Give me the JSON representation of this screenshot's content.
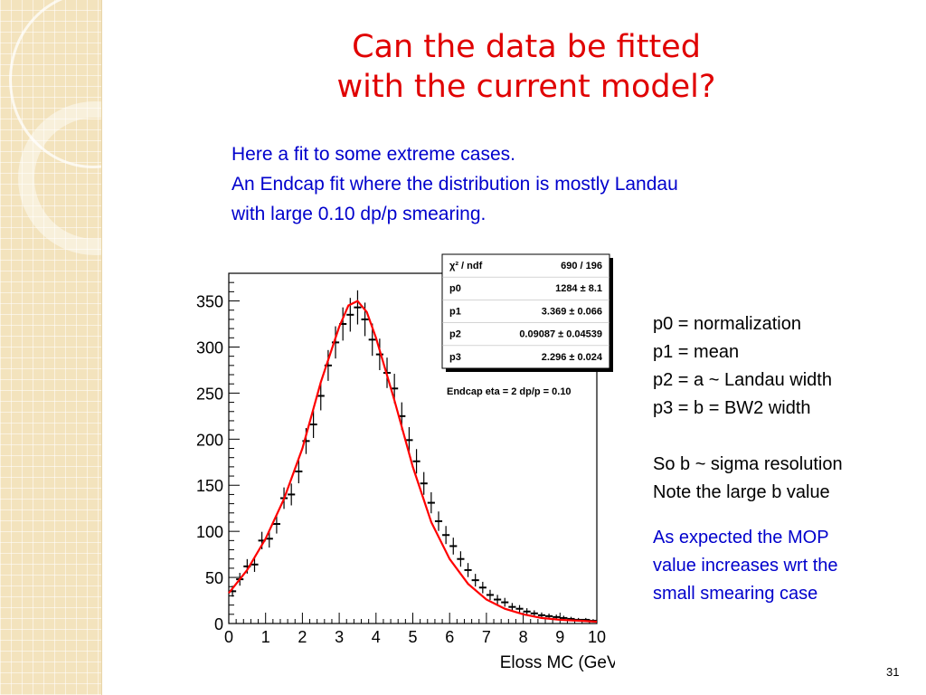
{
  "slide": {
    "title_line1": "Can the data be fitted",
    "title_line2": "with the current model?",
    "intro": [
      "Here a fit to some extreme cases.",
      "An Endcap fit where the distribution is mostly Landau",
      "with large 0.10 dp/p smearing."
    ],
    "params": [
      "p0 = normalization",
      "p1 = mean",
      "p2 = a ~ Landau width",
      "p3 = b = BW2 width",
      "",
      "So b ~ sigma resolution",
      "Note the large b value"
    ],
    "note": [
      "As expected the MOP",
      "value increases wrt the",
      "small smearing case"
    ],
    "slide_number": "31"
  },
  "colors": {
    "title": "#e00000",
    "text_blue": "#0000cc",
    "fit_line": "#ff0000",
    "data": "#000000",
    "sidebar": "#f3e3bd"
  },
  "chart_data": {
    "type": "line",
    "xlabel": "Eloss MC (GeV)",
    "ylabel": "",
    "xlim": [
      0,
      10
    ],
    "ylim": [
      0,
      380
    ],
    "x_ticks": [
      "0",
      "1",
      "2",
      "3",
      "4",
      "5",
      "6",
      "7",
      "8",
      "9",
      "10"
    ],
    "y_ticks": [
      "0",
      "50",
      "100",
      "150",
      "200",
      "250",
      "300",
      "350"
    ],
    "stats_box": {
      "rows": [
        {
          "label": "χ² / ndf",
          "value": "690 / 196"
        },
        {
          "label": "p0",
          "value": "1284 ± 8.1"
        },
        {
          "label": "p1",
          "value": "3.369 ± 0.066"
        },
        {
          "label": "p2",
          "value": "0.09087 ± 0.04539"
        },
        {
          "label": "p3",
          "value": "2.296 ± 0.024"
        }
      ]
    },
    "annotation": "Endcap eta = 2 dp/p = 0.10",
    "series": [
      {
        "type": "line",
        "x": [
          0.0,
          0.5,
          1.0,
          1.5,
          2.0,
          2.5,
          3.0,
          3.25,
          3.5,
          3.75,
          4.0,
          4.5,
          5.0,
          5.5,
          6.0,
          6.5,
          7.0,
          7.5,
          8.0,
          8.5,
          9.0,
          9.5,
          10.0
        ],
        "values": [
          33,
          58,
          92,
          135,
          190,
          262,
          322,
          345,
          350,
          338,
          310,
          242,
          170,
          110,
          70,
          43,
          26,
          16,
          10,
          6,
          4,
          3,
          2
        ]
      },
      {
        "type": "histogram",
        "x": [
          0.1,
          0.3,
          0.5,
          0.7,
          0.9,
          1.1,
          1.3,
          1.5,
          1.7,
          1.9,
          2.1,
          2.3,
          2.5,
          2.7,
          2.9,
          3.1,
          3.3,
          3.5,
          3.7,
          3.9,
          4.1,
          4.3,
          4.5,
          4.7,
          4.9,
          5.1,
          5.3,
          5.5,
          5.7,
          5.9,
          6.1,
          6.3,
          6.5,
          6.7,
          6.9,
          7.1,
          7.3,
          7.5,
          7.7,
          7.9,
          8.1,
          8.3,
          8.5,
          8.7,
          8.9,
          9.1,
          9.3,
          9.5,
          9.7,
          9.9
        ],
        "values": [
          35,
          48,
          62,
          64,
          90,
          92,
          108,
          136,
          140,
          165,
          198,
          216,
          247,
          280,
          305,
          325,
          335,
          343,
          330,
          308,
          292,
          272,
          255,
          225,
          199,
          176,
          152,
          131,
          111,
          96,
          84,
          70,
          58,
          47,
          39,
          31,
          26,
          23,
          18,
          16,
          13,
          11,
          9,
          8,
          7,
          6,
          5,
          4,
          4,
          3
        ]
      }
    ]
  }
}
